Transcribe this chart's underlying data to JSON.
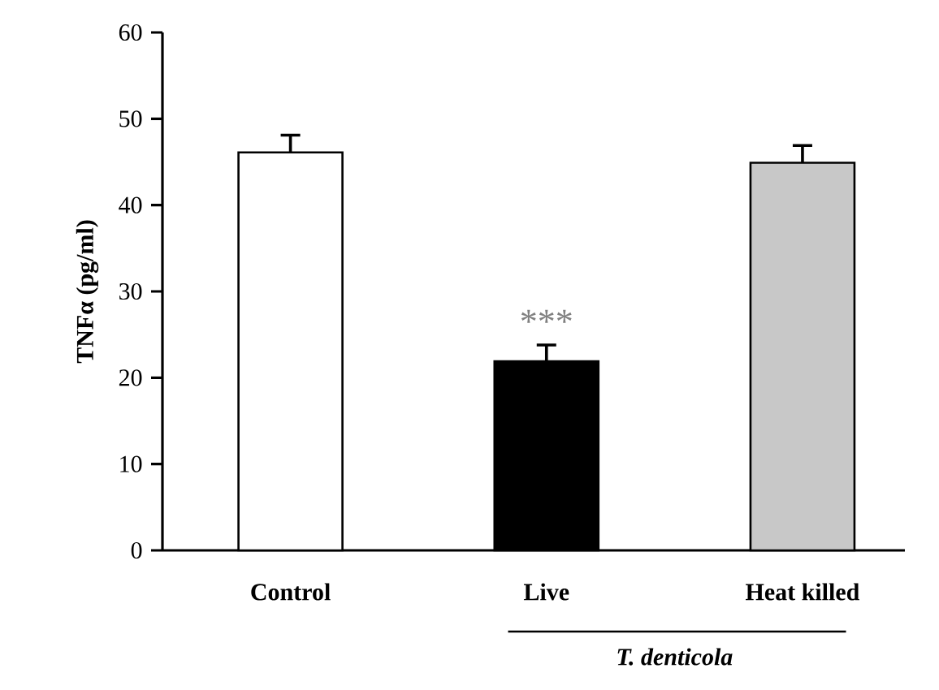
{
  "chart_data": {
    "type": "bar",
    "ylabel": "TNFα (pg/ml)",
    "categories": [
      "Control",
      "Live",
      "Heat  killed"
    ],
    "values": [
      46.1,
      21.9,
      44.9
    ],
    "colors": [
      "#ffffff",
      "#000000",
      "#c8c8c8"
    ],
    "errors": [
      [
        46.1,
        48.1
      ],
      [
        21.9,
        23.8
      ],
      [
        44.9,
        46.9
      ]
    ],
    "ylim": [
      0,
      60
    ],
    "yticks": [
      0,
      10,
      20,
      30,
      40,
      50,
      60
    ],
    "annotations": [
      "***",
      "T. denticola"
    ]
  }
}
